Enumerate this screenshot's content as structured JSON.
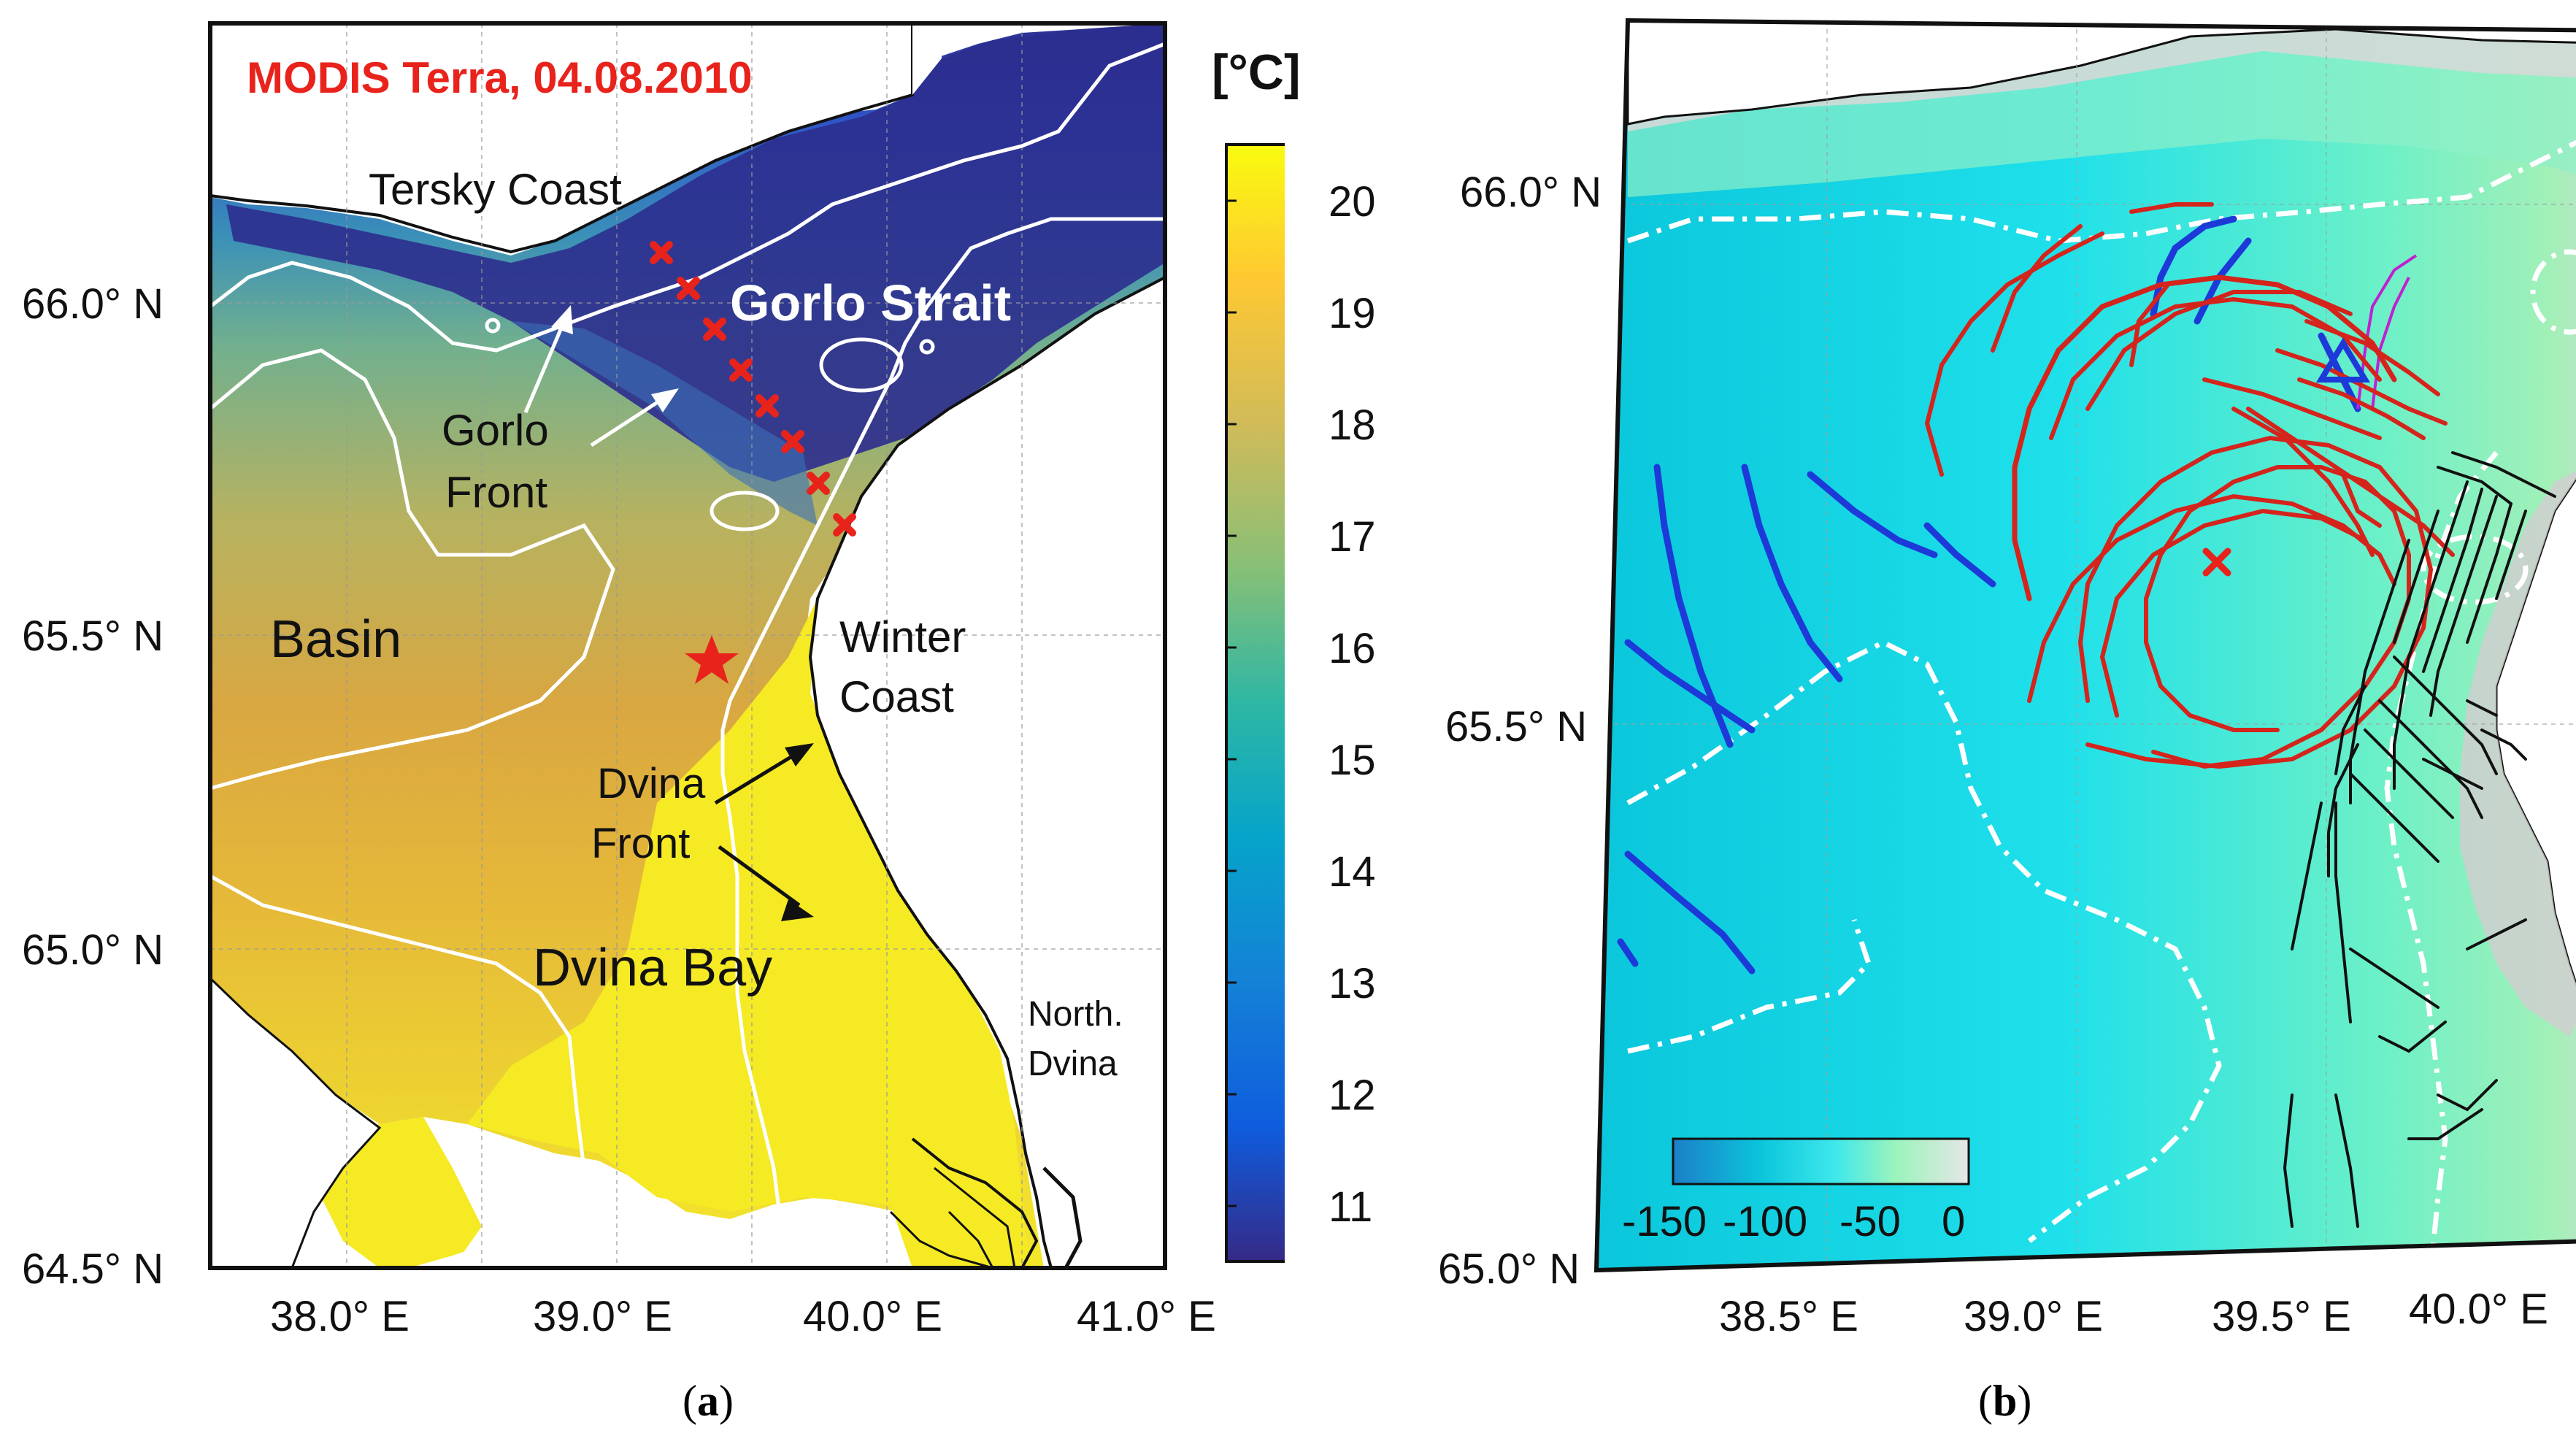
{
  "panel_a": {
    "caption_letter": "a",
    "title": "MODIS Terra, 04.08.2010",
    "title_color": "#e8231c",
    "colorbar": {
      "unit": "[°C]",
      "ticks": [
        "20",
        "19",
        "18",
        "17",
        "16",
        "15",
        "14",
        "13",
        "12",
        "11"
      ],
      "range": [
        10.5,
        20.5
      ],
      "colormap": "parula"
    },
    "lat_ticks": [
      "66.0° N",
      "65.5° N",
      "65.0° N",
      "64.5° N"
    ],
    "lon_ticks": [
      "38.0° E",
      "39.0° E",
      "40.0° E",
      "41.0° E"
    ],
    "labels": {
      "tersky": "Tersky Coast",
      "gorlo_strait": "Gorlo Strait",
      "gorlo_front_1": "Gorlo",
      "gorlo_front_2": "Front",
      "basin": "Basin",
      "winter_1": "Winter",
      "winter_2": "Coast",
      "dvina_front_1": "Dvina",
      "dvina_front_2": "Front",
      "dvina_bay": "Dvina Bay",
      "north_dvina_1": "North.",
      "north_dvina_2": "Dvina"
    },
    "colors": {
      "land": "#ffffff",
      "warm": "#f2e52a",
      "mid": "#c8b840",
      "cold": "#2b2f8f",
      "contour": "#ffffff",
      "marker": "#e8231c"
    }
  },
  "panel_b": {
    "caption_letter": "b",
    "lat_ticks": [
      "66.0° N",
      "65.5° N",
      "65.0° N"
    ],
    "lon_ticks": [
      "38.5° E",
      "39.0° E",
      "39.5° E",
      "40.0° E"
    ],
    "colorbar": {
      "ticks": [
        "-150",
        "-100",
        "-50",
        "0"
      ],
      "range": [
        -170,
        0
      ]
    },
    "colors": {
      "water": "#1fd6e6",
      "shallow": "#8ff0c8",
      "land": "#ffffff",
      "track_red": "#d4241c",
      "track_blue": "#1d3ad8",
      "track_black": "#111111",
      "track_magenta": "#c020d0",
      "contour": "#ffffff"
    }
  }
}
